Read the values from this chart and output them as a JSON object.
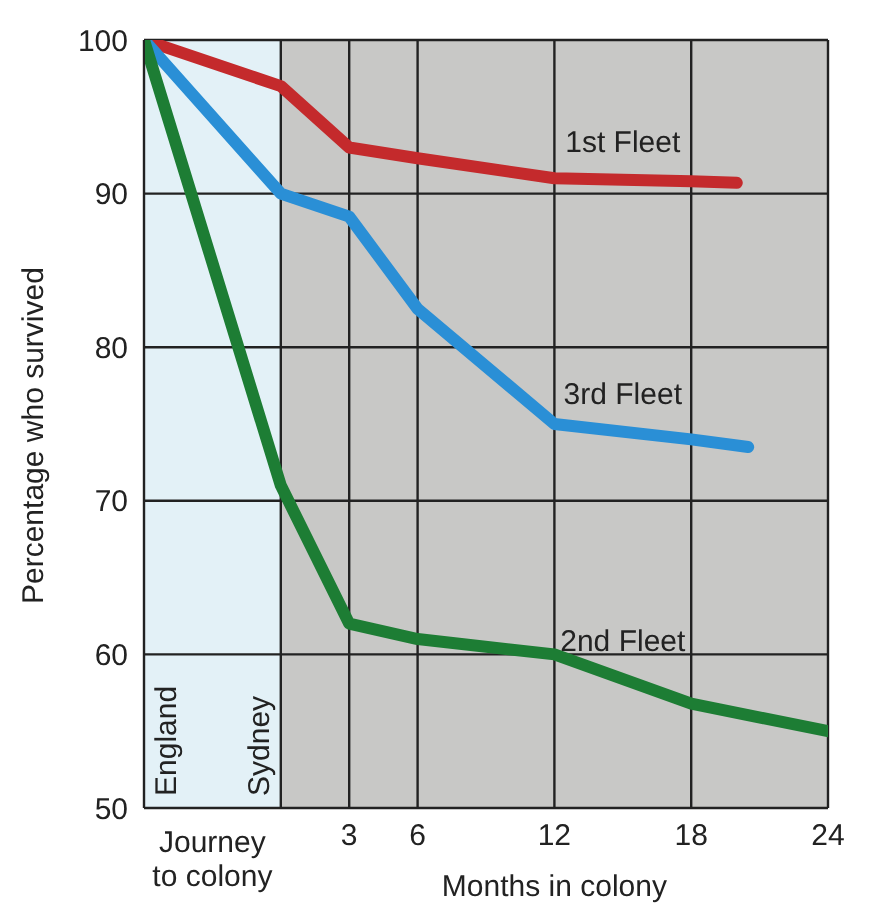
{
  "chart_data": {
    "type": "line",
    "ylabel": "Percentage who survived",
    "xlabel": "Months in colony",
    "x": [
      -6,
      0,
      3,
      6,
      12,
      18,
      20
    ],
    "series": [
      {
        "name": "1st Fleet",
        "color": "#c42a2c",
        "values": [
          100,
          97,
          93,
          92.3,
          91,
          90.8,
          90.7
        ]
      },
      {
        "name": "3rd Fleet",
        "color": "#2a8fd6",
        "x": [
          -6,
          0,
          3,
          6,
          12,
          18,
          20.5
        ],
        "values": [
          100,
          90,
          88.5,
          82.5,
          75,
          74,
          73.5
        ]
      },
      {
        "name": "2nd Fleet",
        "color": "#1d7d34",
        "x": [
          -6,
          0,
          3,
          6,
          12,
          18,
          24
        ],
        "values": [
          100,
          71,
          62,
          61,
          60,
          56.8,
          55
        ]
      }
    ],
    "xlim": [
      -6,
      24
    ],
    "xticks": [
      {
        "value": -6,
        "label": null
      },
      {
        "value": 0,
        "label": null
      },
      3,
      6,
      12,
      18,
      24
    ],
    "ylim": [
      50,
      100
    ],
    "yticks": [
      50,
      60,
      70,
      80,
      90,
      100
    ],
    "bands": [
      {
        "axis": "x",
        "from": -6,
        "to": 0,
        "label": "Journey to colony",
        "color": "#e3f1f7"
      },
      {
        "axis": "x",
        "from": 0,
        "to": 24,
        "color": "#c8c8c6"
      }
    ],
    "annotations": [
      {
        "text": "England",
        "x": -6,
        "y": 50
      },
      {
        "text": "Sydney",
        "x": 0,
        "y": 50
      }
    ],
    "grid": true,
    "marker": "none",
    "line_style": "solid"
  }
}
